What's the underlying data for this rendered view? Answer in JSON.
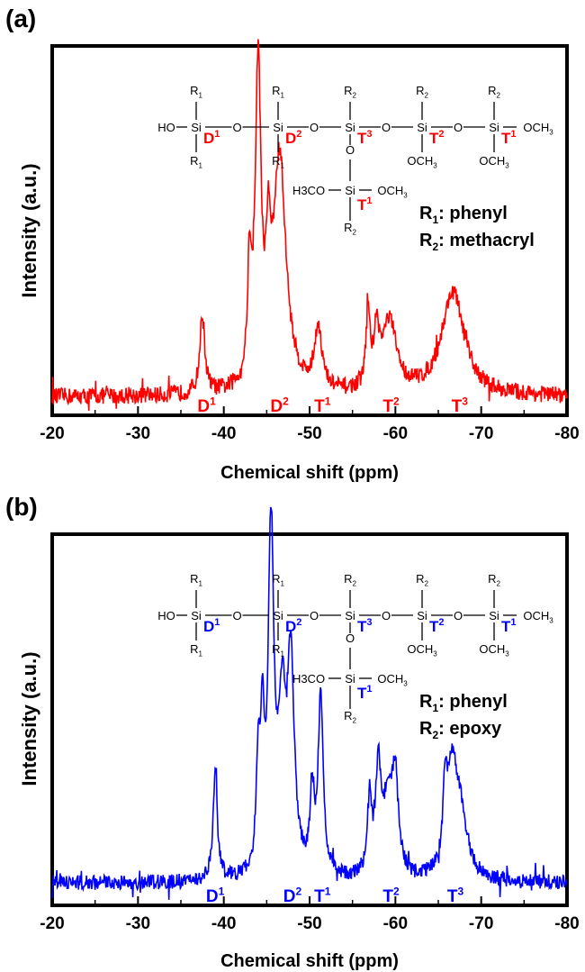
{
  "chart_data": [
    {
      "panel_label": "(a)",
      "type": "line",
      "color": "#ff0000",
      "xlabel": "Chemical shift (ppm)",
      "ylabel": "Intensity (a.u.)",
      "xlim": [
        -20,
        -80
      ],
      "x_ticks": [
        -20,
        -30,
        -40,
        -50,
        -60,
        -70,
        -80
      ],
      "y_ticks": [],
      "grid": false,
      "baseline": 0.05,
      "noise": 0.045,
      "peaks": [
        {
          "x": -37.5,
          "h": 0.21,
          "w": 0.35
        },
        {
          "x": -43.0,
          "h": 0.3,
          "w": 0.25
        },
        {
          "x": -44.0,
          "h": 0.85,
          "w": 0.4
        },
        {
          "x": -45.2,
          "h": 0.28,
          "w": 0.3
        },
        {
          "x": -46.5,
          "h": 0.63,
          "w": 0.9
        },
        {
          "x": -51.0,
          "h": 0.17,
          "w": 0.5
        },
        {
          "x": -56.8,
          "h": 0.21,
          "w": 0.25
        },
        {
          "x": -57.8,
          "h": 0.14,
          "w": 0.4
        },
        {
          "x": -59.3,
          "h": 0.19,
          "w": 1.0
        },
        {
          "x": -66.7,
          "h": 0.28,
          "w": 1.6
        }
      ],
      "peak_labels": [
        {
          "base": "D",
          "sup": "1",
          "x": -38.0
        },
        {
          "base": "D",
          "sup": "2",
          "x": -46.5
        },
        {
          "base": "T",
          "sup": "1",
          "x": -51.5
        },
        {
          "base": "T",
          "sup": "2",
          "x": -59.5
        },
        {
          "base": "T",
          "sup": "3",
          "x": -67.5
        }
      ],
      "legend_lines": [
        {
          "base": "R",
          "sub": "1",
          "text": ": phenyl"
        },
        {
          "base": "R",
          "sub": "2",
          "text": ": methacryl"
        }
      ]
    },
    {
      "panel_label": "(b)",
      "type": "line",
      "color": "#0000ff",
      "xlabel": "Chemical shift (ppm)",
      "ylabel": "Intensity (a.u.)",
      "xlim": [
        -20,
        -80
      ],
      "x_ticks": [
        -20,
        -30,
        -40,
        -50,
        -60,
        -70,
        -80
      ],
      "y_ticks": [],
      "grid": false,
      "baseline": 0.06,
      "noise": 0.04,
      "peaks": [
        {
          "x": -39.0,
          "h": 0.3,
          "w": 0.3
        },
        {
          "x": -44.0,
          "h": 0.28,
          "w": 0.25
        },
        {
          "x": -44.5,
          "h": 0.34,
          "w": 0.25
        },
        {
          "x": -45.5,
          "h": 0.92,
          "w": 0.4
        },
        {
          "x": -46.8,
          "h": 0.4,
          "w": 0.5
        },
        {
          "x": -47.8,
          "h": 0.56,
          "w": 0.5
        },
        {
          "x": -51.3,
          "h": 0.48,
          "w": 0.35
        },
        {
          "x": -50.3,
          "h": 0.21,
          "w": 0.3
        },
        {
          "x": -57.0,
          "h": 0.2,
          "w": 0.3
        },
        {
          "x": -58.0,
          "h": 0.26,
          "w": 0.4
        },
        {
          "x": -59.2,
          "h": 0.22,
          "w": 0.7
        },
        {
          "x": -60.0,
          "h": 0.22,
          "w": 0.4
        },
        {
          "x": -65.8,
          "h": 0.2,
          "w": 0.3
        },
        {
          "x": -66.6,
          "h": 0.24,
          "w": 0.6
        },
        {
          "x": -67.5,
          "h": 0.18,
          "w": 1.0
        }
      ],
      "peak_labels": [
        {
          "base": "D",
          "sup": "1",
          "x": -39.0
        },
        {
          "base": "D",
          "sup": "2",
          "x": -48.0
        },
        {
          "base": "T",
          "sup": "1",
          "x": -51.5
        },
        {
          "base": "T",
          "sup": "2",
          "x": -59.5
        },
        {
          "base": "T",
          "sup": "3",
          "x": -67.0
        }
      ],
      "legend_lines": [
        {
          "base": "R",
          "sub": "1",
          "text": ": phenyl"
        },
        {
          "base": "R",
          "sub": "2",
          "text": ": epoxy"
        }
      ]
    }
  ],
  "structure": {
    "top_substituents": [
      "R1",
      "R1",
      "R2",
      "R2",
      "R2"
    ],
    "bottom_substituents": [
      "R1",
      "R1",
      "",
      "OCH3",
      "OCH3"
    ],
    "unit_labels": [
      "D1",
      "D2",
      "T3",
      "T2",
      "T1"
    ],
    "left_end": "HO",
    "right_end": "OCH3",
    "bridge_o": "O",
    "si": "Si",
    "branch": {
      "left": "H3CO",
      "right": "OCH3",
      "unit_label": "T1",
      "bottom": "R2"
    }
  }
}
